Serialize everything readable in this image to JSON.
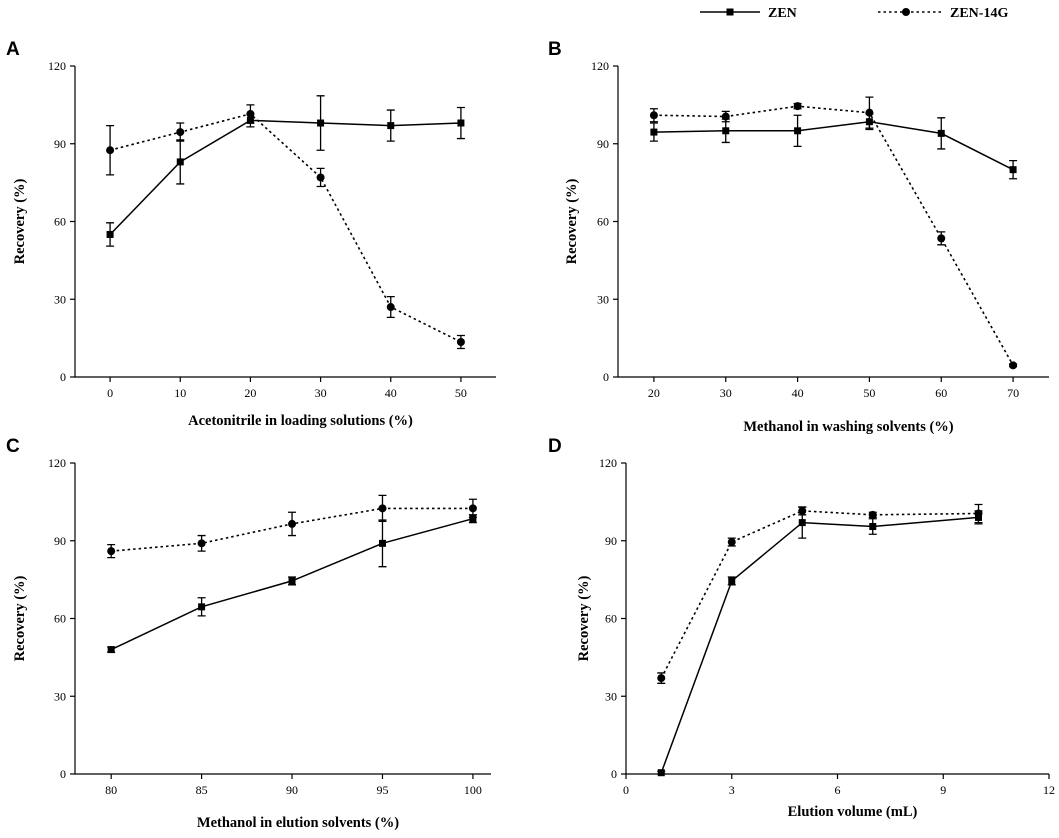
{
  "legend": {
    "series": [
      {
        "name": "ZEN",
        "marker": "square",
        "line": "solid"
      },
      {
        "name": "ZEN-14G",
        "marker": "circle",
        "line": "dotted"
      }
    ]
  },
  "chart_data": [
    {
      "panel": "A",
      "type": "line",
      "xlabel": "Acetonitrile in loading solutions (%)",
      "ylabel": "Recovery (%)",
      "xlim": [
        -5,
        55
      ],
      "ylim": [
        0,
        120
      ],
      "xticks": [
        0,
        10,
        20,
        30,
        40,
        50
      ],
      "yticks": [
        0,
        30,
        60,
        90,
        120
      ],
      "series": [
        {
          "name": "ZEN",
          "x": [
            0,
            10,
            20,
            30,
            40,
            50
          ],
          "values": [
            55,
            83,
            99,
            98,
            97,
            98
          ],
          "err": [
            4.5,
            8.5,
            2.5,
            10.5,
            6,
            6
          ]
        },
        {
          "name": "ZEN-14G",
          "x": [
            0,
            10,
            20,
            30,
            40,
            50
          ],
          "values": [
            87.5,
            94.5,
            101.5,
            77,
            27,
            13.5
          ],
          "err": [
            9.5,
            3.5,
            3.5,
            3.5,
            4,
            2.5
          ]
        }
      ]
    },
    {
      "panel": "B",
      "type": "line",
      "xlabel": "Methanol in washing solvents (%)",
      "ylabel": "Recovery (%)",
      "xlim": [
        15,
        75
      ],
      "ylim": [
        0,
        120
      ],
      "xticks": [
        20,
        30,
        40,
        50,
        60,
        70
      ],
      "yticks": [
        0,
        30,
        60,
        90,
        120
      ],
      "series": [
        {
          "name": "ZEN",
          "x": [
            20,
            30,
            40,
            50,
            60,
            70
          ],
          "values": [
            94.5,
            95,
            95,
            98.5,
            94,
            80
          ],
          "err": [
            3.5,
            4.5,
            6,
            3,
            6,
            3.5
          ]
        },
        {
          "name": "ZEN-14G",
          "x": [
            20,
            30,
            40,
            50,
            60,
            70
          ],
          "values": [
            101,
            100.5,
            104.5,
            102,
            53.5,
            4.5
          ],
          "err": [
            2.5,
            2,
            1,
            6,
            2.5,
            0.5
          ]
        }
      ]
    },
    {
      "panel": "C",
      "type": "line",
      "xlabel": "Methanol in elution solvents (%)",
      "ylabel": "Recovery (%)",
      "xlim": [
        78,
        101
      ],
      "ylim": [
        0,
        120
      ],
      "xticks": [
        80,
        85,
        90,
        95,
        100
      ],
      "yticks": [
        0,
        30,
        60,
        90,
        120
      ],
      "series": [
        {
          "name": "ZEN",
          "x": [
            80,
            85,
            90,
            95,
            100
          ],
          "values": [
            48,
            64.5,
            74.5,
            89,
            98.5
          ],
          "err": [
            1,
            3.5,
            1.5,
            9,
            1.5
          ]
        },
        {
          "name": "ZEN-14G",
          "x": [
            80,
            85,
            90,
            95,
            100
          ],
          "values": [
            86,
            89,
            96.5,
            102.5,
            102.5
          ],
          "err": [
            2.5,
            3,
            4.5,
            5,
            3.5
          ]
        }
      ]
    },
    {
      "panel": "D",
      "type": "line",
      "xlabel": "Elution volume (mL)",
      "ylabel": "Recovery (%)",
      "xlim": [
        0,
        12
      ],
      "ylim": [
        0,
        120
      ],
      "xticks": [
        0,
        3,
        6,
        9,
        12
      ],
      "yticks": [
        0,
        30,
        60,
        90,
        120
      ],
      "series": [
        {
          "name": "ZEN",
          "x": [
            1,
            3,
            5,
            7,
            10
          ],
          "values": [
            0.5,
            74.5,
            97,
            95.5,
            99
          ],
          "err": [
            0.5,
            1.5,
            6,
            3,
            2.5
          ]
        },
        {
          "name": "ZEN-14G",
          "x": [
            1,
            3,
            5,
            7,
            10
          ],
          "values": [
            37,
            89.5,
            101.5,
            100,
            100.5
          ],
          "err": [
            2,
            1.5,
            1.5,
            1,
            3.5
          ]
        }
      ]
    }
  ]
}
